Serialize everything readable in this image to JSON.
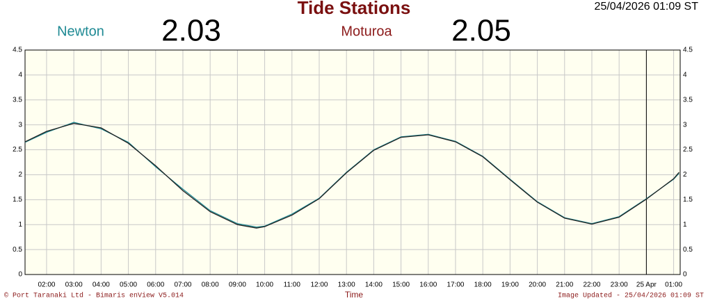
{
  "chart_data": {
    "type": "line",
    "title": "Tide Stations",
    "timestamp": "25/04/2026 01:09 ST",
    "x_label": "Time",
    "footer_left": "© Port Taranaki Ltd - Bimaris enView V5.014",
    "footer_right": "Image Updated - 25/04/2026 01:09 ST",
    "x": [
      1.21,
      2,
      3,
      4,
      5,
      6,
      7,
      8,
      9,
      9.7,
      10,
      11,
      12,
      13,
      14,
      15,
      16,
      17,
      18,
      19,
      20,
      21,
      22,
      23,
      24,
      25,
      25.2
    ],
    "series": [
      {
        "name": "Newton",
        "color": "#1f8a94",
        "label_color": "#1f8a94",
        "current": 2.03,
        "values": [
          2.65,
          2.85,
          3.05,
          2.92,
          2.65,
          2.16,
          1.71,
          1.28,
          1.02,
          0.95,
          0.97,
          1.21,
          1.53,
          2.05,
          2.5,
          2.76,
          2.81,
          2.67,
          2.37,
          1.91,
          1.46,
          1.14,
          1.02,
          1.16,
          1.52,
          1.91,
          2.03
        ]
      },
      {
        "name": "Moturoa",
        "color": "#222222",
        "label_color": "#8b1a1a",
        "current": 2.05,
        "values": [
          2.66,
          2.87,
          3.03,
          2.94,
          2.63,
          2.18,
          1.68,
          1.26,
          1.0,
          0.93,
          0.96,
          1.19,
          1.52,
          2.04,
          2.49,
          2.75,
          2.8,
          2.66,
          2.36,
          1.9,
          1.45,
          1.13,
          1.01,
          1.15,
          1.51,
          1.92,
          2.05
        ]
      }
    ],
    "xlim": [
      1.21,
      25.24
    ],
    "xticks": [
      {
        "value": 2,
        "label": "02:00"
      },
      {
        "value": 3,
        "label": "03:00"
      },
      {
        "value": 4,
        "label": "04:00"
      },
      {
        "value": 5,
        "label": "05:00"
      },
      {
        "value": 6,
        "label": "06:00"
      },
      {
        "value": 7,
        "label": "07:00"
      },
      {
        "value": 8,
        "label": "08:00"
      },
      {
        "value": 9,
        "label": "09:00"
      },
      {
        "value": 10,
        "label": "10:00"
      },
      {
        "value": 11,
        "label": "11:00"
      },
      {
        "value": 12,
        "label": "12:00"
      },
      {
        "value": 13,
        "label": "13:00"
      },
      {
        "value": 14,
        "label": "14:00"
      },
      {
        "value": 15,
        "label": "15:00"
      },
      {
        "value": 16,
        "label": "16:00"
      },
      {
        "value": 17,
        "label": "17:00"
      },
      {
        "value": 18,
        "label": "18:00"
      },
      {
        "value": 19,
        "label": "19:00"
      },
      {
        "value": 20,
        "label": "20:00"
      },
      {
        "value": 21,
        "label": "21:00"
      },
      {
        "value": 22,
        "label": "22:00"
      },
      {
        "value": 23,
        "label": "23:00"
      },
      {
        "value": 24,
        "label": "25 Apr"
      },
      {
        "value": 25,
        "label": "01:00"
      }
    ],
    "day_marker": 24,
    "ylim": [
      0,
      4.5
    ],
    "yticks": [
      0,
      0.5,
      1,
      1.5,
      2,
      2.5,
      3,
      3.5,
      4,
      4.5
    ],
    "grid": true
  }
}
